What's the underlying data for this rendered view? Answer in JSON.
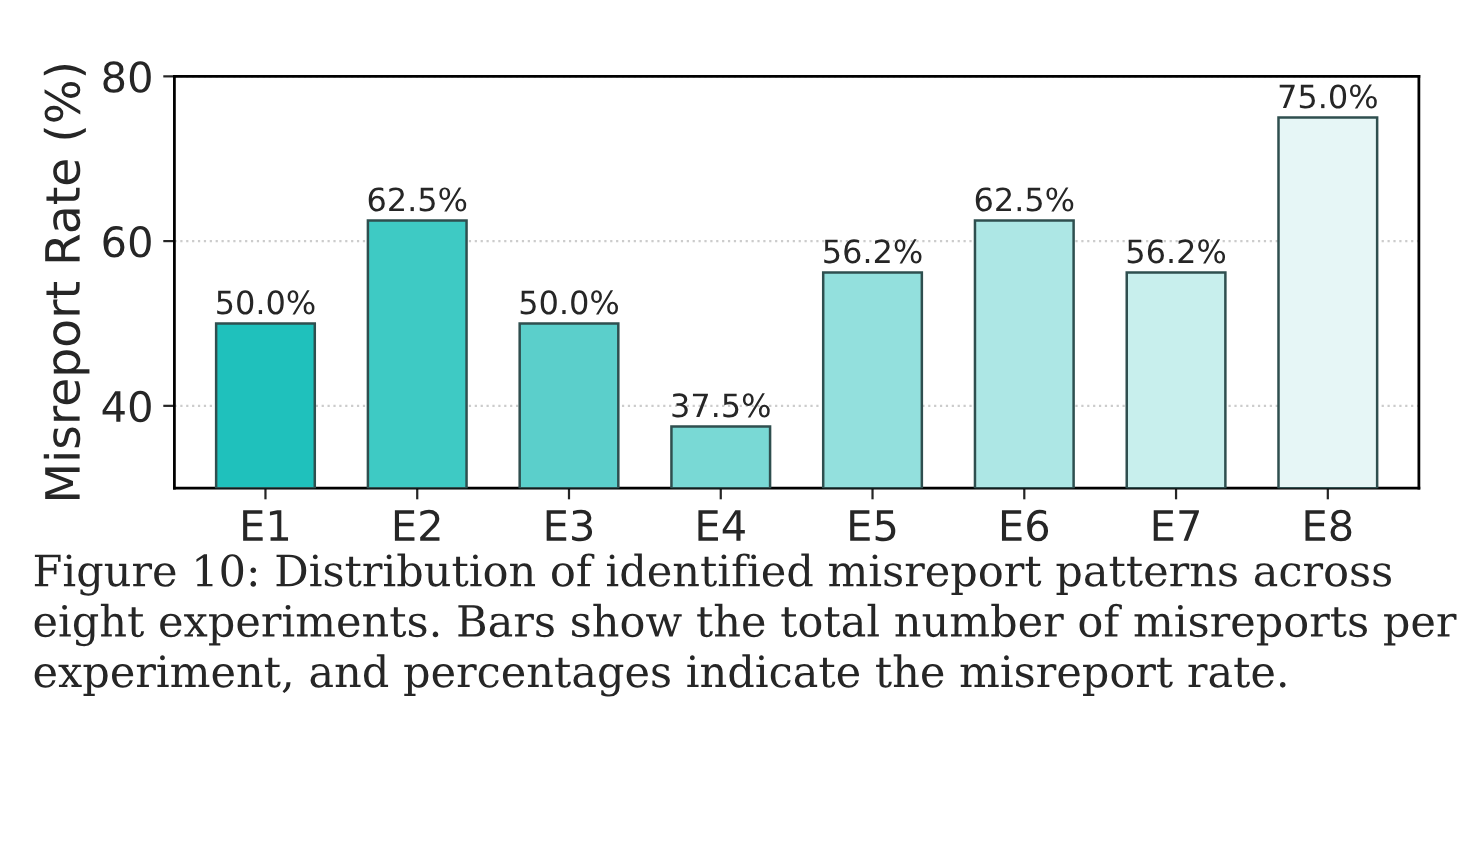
{
  "chart_data": {
    "type": "bar",
    "ylabel": "Misreport Rate (%)",
    "categories": [
      "E1",
      "E2",
      "E3",
      "E4",
      "E5",
      "E6",
      "E7",
      "E8"
    ],
    "values": [
      50.0,
      62.5,
      50.0,
      37.5,
      56.2,
      62.5,
      56.2,
      75.0
    ],
    "colors": [
      "#1fc1bc",
      "#3ecac4",
      "#5bcfcb",
      "#79d9d5",
      "#93e0dd",
      "#ade7e5",
      "#c8efed",
      "#e6f6f6"
    ],
    "value_labels": [
      "50.0%",
      "62.5%",
      "50.0%",
      "37.5%",
      "56.2%",
      "62.5%",
      "56.2%",
      "75.0%"
    ],
    "ylim": [
      30,
      80
    ],
    "yticks": [
      40,
      60,
      80
    ],
    "grid": "y",
    "annotations": [
      "Figure 10: Distribution of identified misreport patterns across eight experiments. Bars show the total number of misreports per experiment, and percentages indicate the misreport rate."
    ]
  }
}
